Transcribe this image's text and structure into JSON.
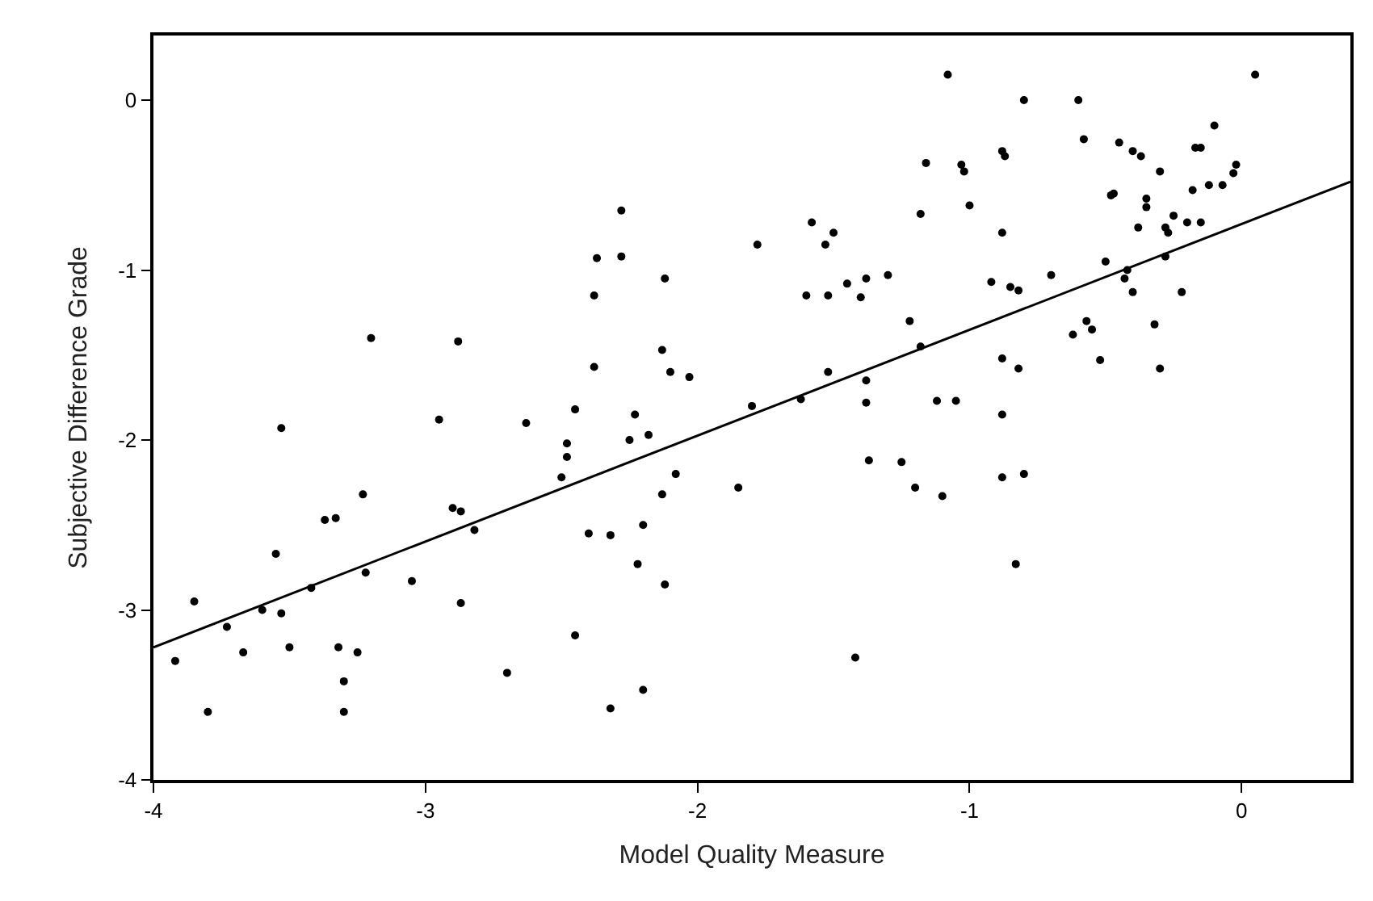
{
  "chart_data": {
    "type": "scatter",
    "xlabel": "Model Quality Measure",
    "ylabel": "Subjective Difference Grade",
    "xlim": [
      -4,
      0.4
    ],
    "ylim": [
      -4,
      0.38
    ],
    "xticks": [
      -4,
      -3,
      -2,
      -1,
      0
    ],
    "yticks": [
      -4,
      -3,
      -2,
      -1,
      0
    ],
    "series": [
      {
        "color": "#000000",
        "marker": "circle",
        "x": [
          -3.92,
          -3.85,
          -3.8,
          -3.73,
          -3.67,
          -3.6,
          -3.55,
          -3.53,
          -3.53,
          -3.5,
          -3.42,
          -3.37,
          -3.33,
          -3.32,
          -3.3,
          -3.3,
          -3.25,
          -3.23,
          -3.22,
          -3.2,
          -3.05,
          -2.95,
          -2.9,
          -2.87,
          -2.88,
          -2.87,
          -2.82,
          -2.7,
          -2.63,
          -2.5,
          -2.48,
          -2.48,
          -2.45,
          -2.45,
          -2.4,
          -2.38,
          -2.38,
          -2.37,
          -2.32,
          -2.32,
          -2.28,
          -2.28,
          -2.25,
          -2.23,
          -2.22,
          -2.2,
          -2.2,
          -2.18,
          -2.13,
          -2.13,
          -2.12,
          -2.12,
          -2.1,
          -2.08,
          -2.03,
          -1.85,
          -1.8,
          -1.78,
          -1.62,
          -1.6,
          -1.58,
          -1.53,
          -1.52,
          -1.5,
          -1.52,
          -1.45,
          -1.42,
          -1.4,
          -1.38,
          -1.38,
          -1.37,
          -1.38,
          -1.3,
          -1.25,
          -1.22,
          -1.2,
          -1.18,
          -1.18,
          -1.16,
          -1.12,
          -1.1,
          -1.08,
          -1.05,
          -1.03,
          -1.02,
          -1.0,
          -0.92,
          -0.88,
          -0.87,
          -0.88,
          -0.88,
          -0.88,
          -0.88,
          -0.85,
          -0.83,
          -0.82,
          -0.82,
          -0.8,
          -0.8,
          -0.7,
          -0.62,
          -0.6,
          -0.58,
          -0.57,
          -0.55,
          -0.52,
          -0.5,
          -0.48,
          -0.47,
          -0.45,
          -0.43,
          -0.42,
          -0.4,
          -0.4,
          -0.38,
          -0.37,
          -0.35,
          -0.35,
          -0.32,
          -0.3,
          -0.3,
          -0.28,
          -0.27,
          -0.28,
          -0.25,
          -0.22,
          -0.2,
          -0.18,
          -0.17,
          -0.15,
          -0.15,
          -0.12,
          -0.1,
          -0.07,
          -0.03,
          -0.02,
          0.05
        ],
        "values": [
          -3.3,
          -2.95,
          -3.6,
          -3.1,
          -3.25,
          -3.0,
          -2.67,
          -3.02,
          -1.93,
          -3.22,
          -2.87,
          -2.47,
          -2.46,
          -3.22,
          -3.42,
          -3.6,
          -3.25,
          -2.32,
          -2.78,
          -1.4,
          -2.83,
          -1.88,
          -2.4,
          -2.42,
          -1.42,
          -2.96,
          -2.53,
          -3.37,
          -1.9,
          -2.22,
          -2.02,
          -2.1,
          -1.82,
          -3.15,
          -2.55,
          -1.57,
          -1.15,
          -0.93,
          -3.58,
          -2.56,
          -0.92,
          -0.65,
          -2.0,
          -1.85,
          -2.73,
          -3.47,
          -2.5,
          -1.97,
          -1.47,
          -2.32,
          -1.05,
          -2.85,
          -1.6,
          -2.2,
          -1.63,
          -2.28,
          -1.8,
          -0.85,
          -1.76,
          -1.15,
          -0.72,
          -0.85,
          -1.15,
          -0.78,
          -1.6,
          -1.08,
          -3.28,
          -1.16,
          -1.05,
          -1.78,
          -2.12,
          -1.65,
          -1.03,
          -2.13,
          -1.3,
          -2.28,
          -0.67,
          -1.45,
          -0.37,
          -1.77,
          -2.33,
          0.15,
          -1.77,
          -0.38,
          -0.42,
          -0.62,
          -1.07,
          -0.3,
          -0.33,
          -0.78,
          -1.52,
          -1.85,
          -2.22,
          -1.1,
          -2.73,
          -1.12,
          -1.58,
          -2.2,
          0.0,
          -1.03,
          -1.38,
          0.0,
          -0.23,
          -1.3,
          -1.35,
          -1.53,
          -0.95,
          -0.56,
          -0.55,
          -0.25,
          -1.05,
          -1.0,
          -1.13,
          -0.3,
          -0.75,
          -0.33,
          -0.63,
          -0.58,
          -1.32,
          -0.42,
          -1.58,
          -0.75,
          -0.78,
          -0.92,
          -0.68,
          -1.13,
          -0.72,
          -0.53,
          -0.28,
          -0.28,
          -0.72,
          -0.5,
          -0.15,
          -0.5,
          -0.43,
          -0.38,
          0.15
        ]
      },
      {
        "type": "line",
        "marker": "none",
        "color": "#000000",
        "x": [
          -4,
          0.4
        ],
        "values": [
          -3.22,
          -0.48
        ]
      }
    ]
  }
}
